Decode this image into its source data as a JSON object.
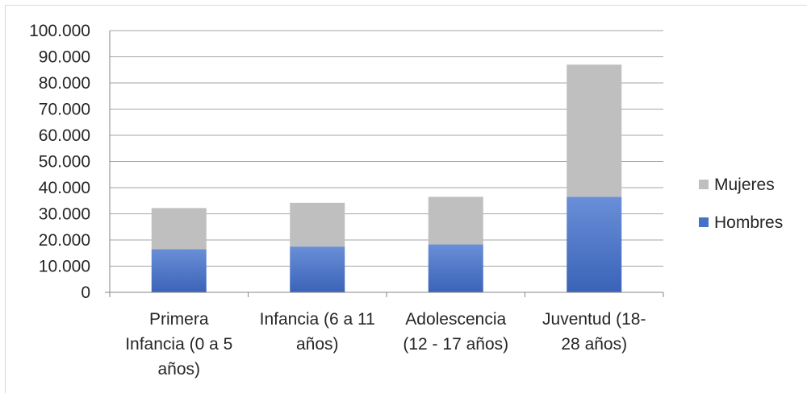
{
  "chart_data": {
    "type": "bar",
    "stacked": true,
    "categories": [
      [
        "Primera",
        "Infancia (0 a 5",
        "años)"
      ],
      [
        "Infancia (6 a 11",
        "años)"
      ],
      [
        "Adolescencia",
        "(12 - 17 años)"
      ],
      [
        "Juventud (18-",
        "28 años)"
      ]
    ],
    "series": [
      {
        "name": "Hombres",
        "values": [
          16500,
          17500,
          18300,
          36500
        ],
        "color": "#4472c4"
      },
      {
        "name": "Mujeres",
        "values": [
          15700,
          16700,
          18200,
          50500
        ],
        "color": "#bfbfbf"
      }
    ],
    "ylim": [
      0,
      100000
    ],
    "yticks": [
      "0",
      "10.000",
      "20.000",
      "30.000",
      "40.000",
      "50.000",
      "60.000",
      "70.000",
      "80.000",
      "90.000",
      "100.000"
    ],
    "grid": true,
    "legend_position": "right",
    "legend": [
      "Mujeres",
      "Hombres"
    ]
  }
}
